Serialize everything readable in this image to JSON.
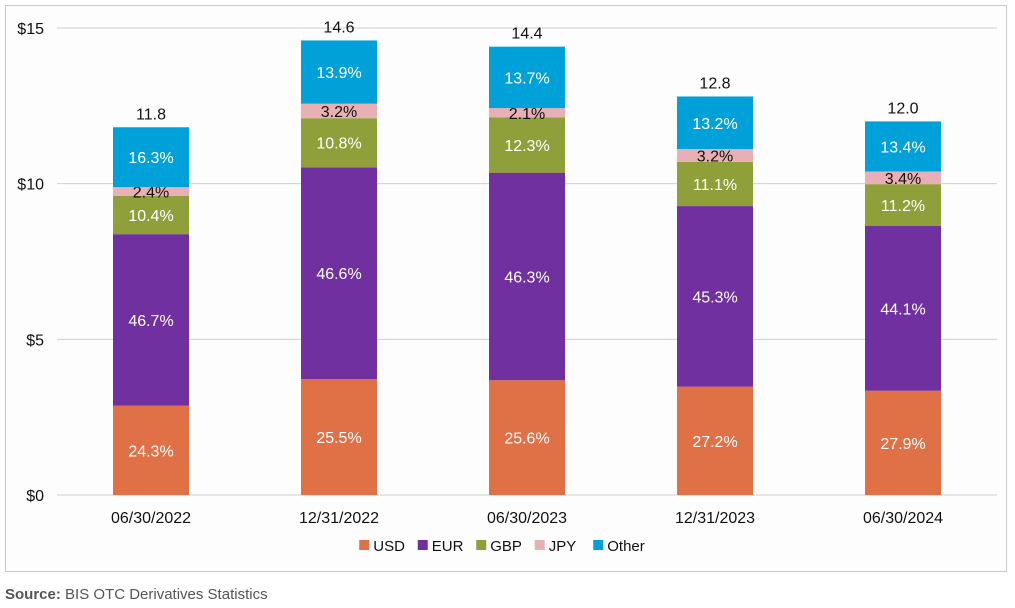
{
  "chart_data": {
    "type": "bar",
    "stacked": true,
    "title": "",
    "xlabel": "",
    "ylabel": "",
    "ylim": [
      0,
      15
    ],
    "y_ticks": [
      "$0",
      "$5",
      "$10",
      "$15"
    ],
    "y_tick_values": [
      0,
      5,
      10,
      15
    ],
    "grid": true,
    "legend_position": "bottom-center",
    "categories": [
      "06/30/2022",
      "12/31/2022",
      "06/30/2023",
      "12/31/2023",
      "06/30/2024"
    ],
    "totals": [
      11.8,
      14.6,
      14.4,
      12.8,
      12.0
    ],
    "total_labels": [
      "11.8",
      "14.6",
      "14.4",
      "12.8",
      "12.0"
    ],
    "series": [
      {
        "name": "USD",
        "color": "#e07045",
        "label_color": "#ffffff",
        "shares_pct": [
          24.3,
          25.5,
          25.6,
          27.2,
          27.9
        ],
        "labels": [
          "24.3%",
          "25.5%",
          "25.6%",
          "27.2%",
          "27.9%"
        ]
      },
      {
        "name": "EUR",
        "color": "#7030a0",
        "label_color": "#ffffff",
        "shares_pct": [
          46.7,
          46.6,
          46.3,
          45.3,
          44.1
        ],
        "labels": [
          "46.7%",
          "46.6%",
          "46.3%",
          "45.3%",
          "44.1%"
        ]
      },
      {
        "name": "GBP",
        "color": "#8fa03a",
        "label_color": "#ffffff",
        "shares_pct": [
          10.4,
          10.8,
          12.3,
          11.1,
          11.2
        ],
        "labels": [
          "10.4%",
          "10.8%",
          "12.3%",
          "11.1%",
          "11.2%"
        ]
      },
      {
        "name": "JPY",
        "color": "#e8b0b4",
        "label_color": "#111111",
        "shares_pct": [
          2.4,
          3.2,
          2.1,
          3.2,
          3.4
        ],
        "labels": [
          "2.4%",
          "3.2%",
          "2.1%",
          "3.2%",
          "3.4%"
        ]
      },
      {
        "name": "Other",
        "color": "#00a0d8",
        "label_color": "#ffffff",
        "shares_pct": [
          16.3,
          13.9,
          13.7,
          13.2,
          13.4
        ],
        "labels": [
          "16.3%",
          "13.9%",
          "13.7%",
          "13.2%",
          "13.4%"
        ]
      }
    ]
  },
  "source": {
    "label": "Source:",
    "text": " BIS OTC Derivatives Statistics"
  }
}
